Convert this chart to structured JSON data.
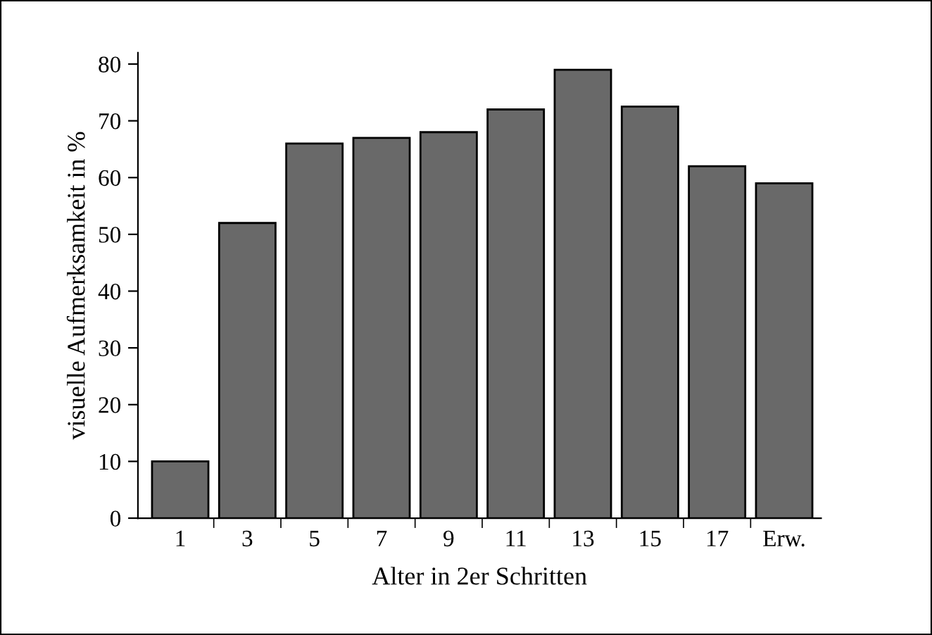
{
  "chart_data": {
    "type": "bar",
    "xlabel": "Alter in 2er Schritten",
    "ylabel": "visuelle Aufmerksamkeit in %",
    "categories": [
      "1",
      "3",
      "5",
      "7",
      "9",
      "11",
      "13",
      "15",
      "17",
      "Erw."
    ],
    "values": [
      10,
      52,
      66,
      67,
      68,
      72,
      79,
      72.5,
      62,
      59
    ],
    "color": "#696969",
    "ylim": [
      0,
      82
    ],
    "yticks": [
      0,
      10,
      20,
      30,
      40,
      50,
      60,
      70,
      80
    ],
    "grid": false
  }
}
